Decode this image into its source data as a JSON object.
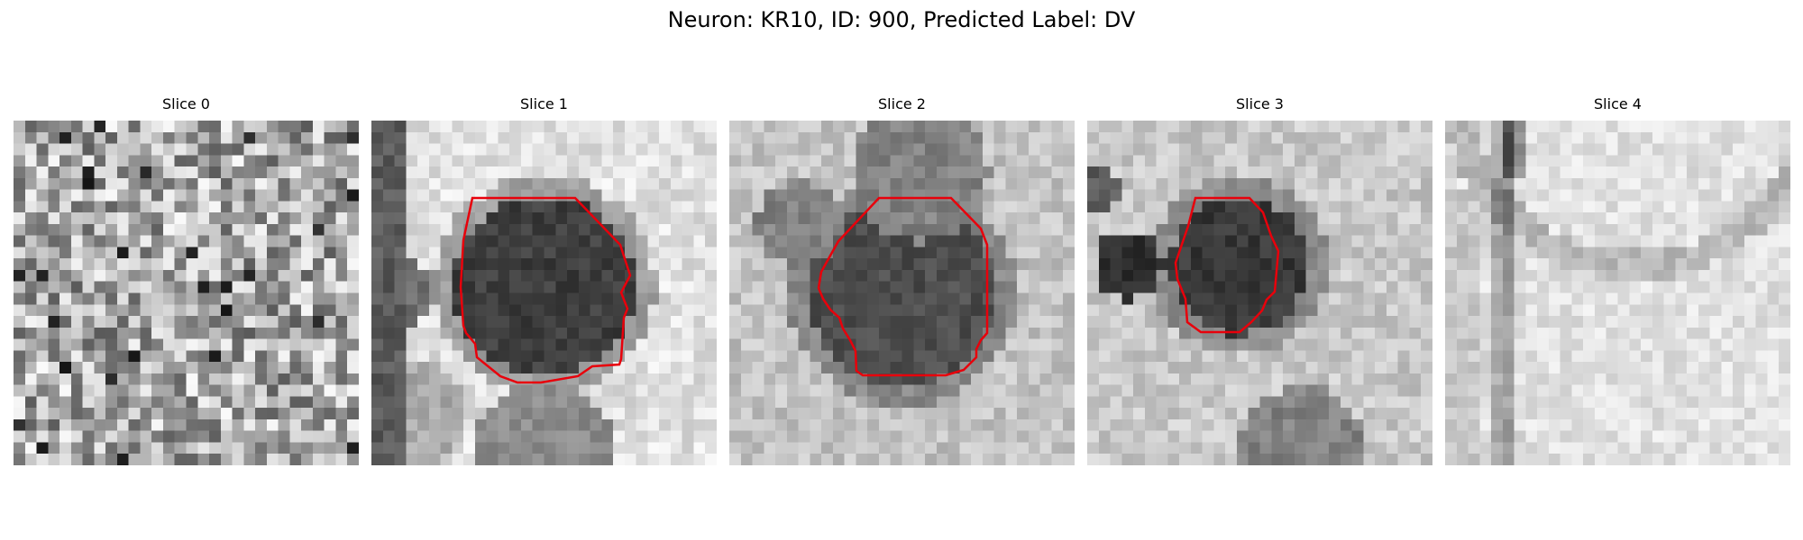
{
  "figure": {
    "title": "Neuron: KR10, ID: 900, Predicted Label: DV"
  },
  "panels": [
    {
      "title": "Slice 0",
      "has_contour": false,
      "kind": "noise"
    },
    {
      "title": "Slice 1",
      "has_contour": true,
      "kind": "blob"
    },
    {
      "title": "Slice 2",
      "has_contour": true,
      "kind": "blob"
    },
    {
      "title": "Slice 3",
      "has_contour": true,
      "kind": "blob"
    },
    {
      "title": "Slice 4",
      "has_contour": false,
      "kind": "light"
    }
  ],
  "colors": {
    "contour": "#e8000b",
    "background": "#ffffff"
  },
  "image": {
    "colormap": "gray",
    "grid": 30
  }
}
